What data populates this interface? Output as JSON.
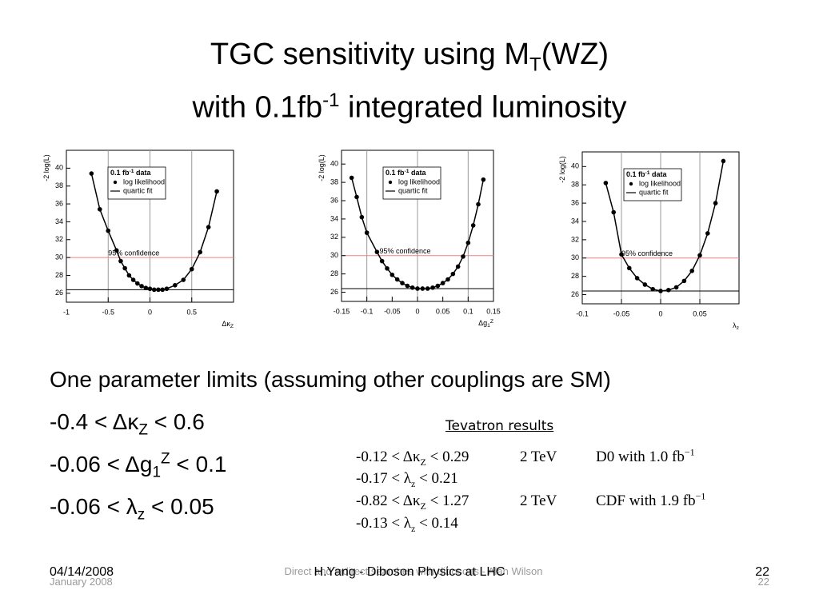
{
  "title": {
    "line1": [
      "TGC sensitivity using M",
      {
        "sub": "T"
      },
      "(WZ)"
    ],
    "line2": [
      "with 0.1fb",
      {
        "sup": "-1"
      },
      " integrated luminosity"
    ]
  },
  "bullets": [
    [
      "One parameter limits (assuming other couplings are SM)"
    ],
    [
      "-0.4 < Δκ",
      {
        "sub": "Z"
      },
      " < 0.6"
    ],
    [
      "-0.06 < Δg",
      {
        "sub": "1"
      },
      {
        "sup": "Z"
      },
      " < 0.1"
    ],
    [
      "-0.06 < λ",
      {
        "sub": "z"
      },
      " < 0.05"
    ]
  ],
  "tevatron": {
    "heading": "Tevatron results",
    "rows": [
      [
        [
          "-0.12 < Δκ",
          {
            "sub": "Z"
          },
          " < 0.29"
        ],
        [
          "2 TeV"
        ],
        [
          "D0 with 1.0 ",
          "fb",
          {
            "sup": "−1"
          }
        ]
      ],
      [
        [
          "-0.17 < λ",
          {
            "sub": "z"
          },
          " < 0.21"
        ]
      ],
      [
        [
          "-0.82 < Δκ",
          {
            "sub": "Z"
          },
          " < 1.27"
        ],
        [
          "2 TeV"
        ],
        [
          "CDF with 1.9 ",
          "fb",
          {
            "sup": "−1"
          }
        ]
      ],
      [
        [
          "-0.13 < λ",
          {
            "sub": "z"
          },
          " < 0.14"
        ]
      ]
    ]
  },
  "footer": {
    "date": "04/14/2008",
    "date_ghost": "January 2008",
    "center": "H.Yang - Diboson Physics at LHC",
    "center_ghost": "Direct and indirect searches with dibosons - Alan Wilson",
    "page": "22",
    "page_ghost": "22"
  },
  "chart_data": [
    {
      "type": "scatter",
      "xlim": [
        -1,
        1
      ],
      "ylim": [
        25,
        42
      ],
      "xticks": [
        -1,
        -0.5,
        0,
        0.5
      ],
      "yticks": [
        26,
        28,
        30,
        32,
        34,
        36,
        38,
        40
      ],
      "x": [
        -0.7,
        -0.6,
        -0.5,
        -0.4,
        -0.35,
        -0.3,
        -0.25,
        -0.2,
        -0.15,
        -0.1,
        -0.05,
        0,
        0.05,
        0.1,
        0.15,
        0.2,
        0.3,
        0.4,
        0.5,
        0.6,
        0.7,
        0.8
      ],
      "series": [
        {
          "name": "log likelihood",
          "color": "#000000",
          "marker": "dot",
          "values": [
            39.4,
            35.4,
            33.0,
            30.8,
            29.6,
            28.8,
            28.0,
            27.5,
            27.1,
            26.8,
            26.6,
            26.5,
            26.4,
            26.4,
            26.4,
            26.5,
            26.9,
            27.5,
            28.7,
            30.6,
            33.4,
            37.4
          ]
        },
        {
          "name": "quartic fit",
          "color": "#000000",
          "marker": "line",
          "values": [
            39.4,
            35.4,
            33.0,
            30.8,
            29.6,
            28.8,
            28.0,
            27.5,
            27.1,
            26.8,
            26.6,
            26.5,
            26.4,
            26.4,
            26.4,
            26.5,
            26.9,
            27.5,
            28.7,
            30.6,
            33.4,
            37.4
          ]
        }
      ],
      "hlines": [
        {
          "value": 30,
          "color": "#f08080"
        },
        {
          "value": 26.4,
          "color": "#000000"
        }
      ],
      "vlines": [
        -0.5,
        0,
        0.5
      ],
      "vline_color": "#999999",
      "legend_title": [
        "0.1 fb",
        {
          "sup": "-1"
        },
        " data"
      ],
      "annotation": "95% confidence",
      "y_label": [
        "-2 log(L)"
      ],
      "x_label": [
        "Δκ",
        {
          "sub": "Z"
        }
      ]
    },
    {
      "type": "scatter",
      "xlim": [
        -0.15,
        0.15
      ],
      "ylim": [
        25,
        41.5
      ],
      "xticks": [
        -0.15,
        -0.1,
        -0.05,
        0,
        0.05,
        0.1,
        0.15
      ],
      "yticks": [
        26,
        28,
        30,
        32,
        34,
        36,
        38,
        40
      ],
      "x": [
        -0.13,
        -0.12,
        -0.11,
        -0.1,
        -0.08,
        -0.07,
        -0.06,
        -0.05,
        -0.04,
        -0.03,
        -0.02,
        -0.01,
        0,
        0.01,
        0.02,
        0.03,
        0.04,
        0.05,
        0.06,
        0.07,
        0.08,
        0.09,
        0.1,
        0.11,
        0.12,
        0.13
      ],
      "series": [
        {
          "name": "log likelihood",
          "color": "#000000",
          "marker": "dot",
          "values": [
            38.5,
            36.4,
            34.2,
            32.5,
            30.4,
            29.4,
            28.6,
            27.9,
            27.4,
            27.0,
            26.7,
            26.5,
            26.4,
            26.4,
            26.4,
            26.5,
            26.7,
            27.0,
            27.4,
            28.0,
            28.8,
            29.9,
            31.4,
            33.3,
            35.6,
            38.3
          ]
        },
        {
          "name": "quartic fit",
          "color": "#000000",
          "marker": "line",
          "values": [
            38.5,
            36.4,
            34.2,
            32.5,
            30.4,
            29.4,
            28.6,
            27.9,
            27.4,
            27.0,
            26.7,
            26.5,
            26.4,
            26.4,
            26.4,
            26.5,
            26.7,
            27.0,
            27.4,
            28.0,
            28.8,
            29.9,
            31.4,
            33.3,
            35.6,
            38.3
          ]
        }
      ],
      "hlines": [
        {
          "value": 30,
          "color": "#f08080"
        },
        {
          "value": 26.4,
          "color": "#000000"
        }
      ],
      "vlines": [
        -0.1,
        0,
        0.1
      ],
      "vline_color": "#999999",
      "legend_title": [
        "0.1 fb",
        {
          "sup": "-1"
        },
        " data"
      ],
      "annotation": "95% confidence",
      "y_label": [
        "-2 log(L)"
      ],
      "x_label": [
        "Δg",
        {
          "sub": "1"
        },
        {
          "sup": "Z"
        }
      ]
    },
    {
      "type": "scatter",
      "xlim": [
        -0.1,
        0.1
      ],
      "ylim": [
        25,
        41.6
      ],
      "xticks": [
        -0.1,
        -0.05,
        0,
        0.05
      ],
      "yticks": [
        26,
        28,
        30,
        32,
        34,
        36,
        38,
        40
      ],
      "x": [
        -0.07,
        -0.06,
        -0.05,
        -0.04,
        -0.03,
        -0.02,
        -0.01,
        0,
        0.01,
        0.02,
        0.03,
        0.04,
        0.05,
        0.06,
        0.07,
        0.08
      ],
      "series": [
        {
          "name": "log likelihood",
          "color": "#000000",
          "marker": "dot",
          "values": [
            38.2,
            35.0,
            30.4,
            28.9,
            27.8,
            27.1,
            26.6,
            26.4,
            26.5,
            26.8,
            27.5,
            28.6,
            30.3,
            32.7,
            36.0,
            40.6
          ]
        },
        {
          "name": "quartic fit",
          "color": "#000000",
          "marker": "line",
          "values": [
            38.2,
            35.0,
            30.4,
            28.9,
            27.8,
            27.1,
            26.6,
            26.4,
            26.5,
            26.8,
            27.5,
            28.6,
            30.3,
            32.7,
            36.0,
            40.6
          ]
        }
      ],
      "hlines": [
        {
          "value": 30,
          "color": "#f08080"
        },
        {
          "value": 26.4,
          "color": "#000000"
        }
      ],
      "vlines": [
        -0.05,
        0,
        0.05
      ],
      "vline_color": "#999999",
      "legend_title": [
        "0.1 fb",
        {
          "sup": "-1"
        },
        " data"
      ],
      "annotation": "95% confidence",
      "y_label": [
        "-2 log(L)"
      ],
      "x_label": [
        "λ",
        {
          "sub": "z"
        }
      ]
    }
  ]
}
